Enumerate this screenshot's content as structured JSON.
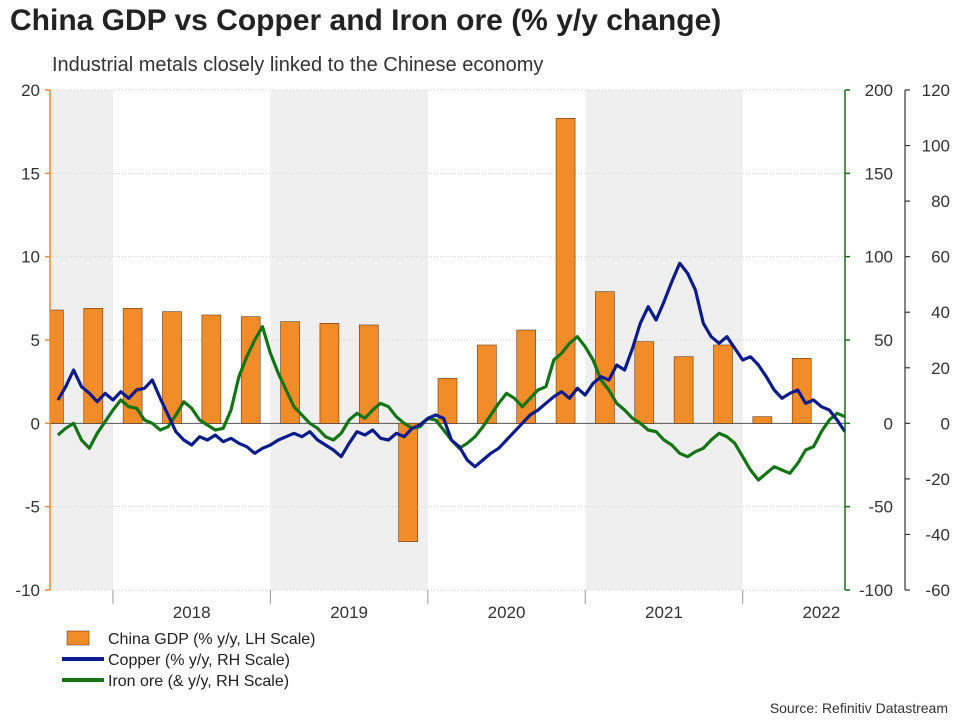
{
  "chart_data": {
    "type": "bar",
    "title": "China GDP vs Copper and Iron ore (% y/y change)",
    "subtitle": "Industrial metals closely linked to the Chinese economy",
    "source": "Source: Refinitiv Datastream",
    "left_axis": {
      "range": [
        -10,
        20
      ],
      "ticks": [
        "-10",
        "-5",
        "0",
        "5",
        "10",
        "15",
        "20"
      ],
      "color": "#F0892C"
    },
    "right_axis_1": {
      "range": [
        -100,
        200
      ],
      "ticks": [
        "-100",
        "-50",
        "0",
        "50",
        "100",
        "150",
        "200"
      ],
      "color": "#1B6E1B"
    },
    "right_axis_2": {
      "range": [
        -60,
        120
      ],
      "ticks": [
        "-60",
        "-40",
        "-20",
        "0",
        "20",
        "40",
        "60",
        "80",
        "100",
        "120"
      ],
      "color": "#333333"
    },
    "years": [
      "2018",
      "2019",
      "2020",
      "2021",
      "2022"
    ],
    "shaded_years": [
      "2017",
      "2019",
      "2021"
    ],
    "x_range": [
      2017.6,
      2022.65
    ],
    "series": [
      {
        "name": "China GDP (% y/y, LH Scale)",
        "type": "bar",
        "axis": "left",
        "color": "#F28C28",
        "points": [
          {
            "x": 2017.625,
            "y": 6.8
          },
          {
            "x": 2017.875,
            "y": 6.9
          },
          {
            "x": 2018.125,
            "y": 6.9
          },
          {
            "x": 2018.375,
            "y": 6.7
          },
          {
            "x": 2018.625,
            "y": 6.5
          },
          {
            "x": 2018.875,
            "y": 6.4
          },
          {
            "x": 2019.125,
            "y": 6.1
          },
          {
            "x": 2019.375,
            "y": 6.0
          },
          {
            "x": 2019.625,
            "y": 5.9
          },
          {
            "x": 2019.875,
            "y": -7.1
          },
          {
            "x": 2020.125,
            "y": 2.7
          },
          {
            "x": 2020.375,
            "y": 4.7
          },
          {
            "x": 2020.625,
            "y": 5.6
          },
          {
            "x": 2020.875,
            "y": 18.3
          },
          {
            "x": 2021.125,
            "y": 7.9
          },
          {
            "x": 2021.375,
            "y": 4.9
          },
          {
            "x": 2021.625,
            "y": 4.0
          },
          {
            "x": 2021.875,
            "y": 4.7
          },
          {
            "x": 2022.125,
            "y": 0.4
          },
          {
            "x": 2022.375,
            "y": 3.9
          }
        ]
      },
      {
        "name": "Copper (% y/y, RH Scale)",
        "type": "line",
        "axis": "right",
        "color": "#0A1C8C",
        "points": [
          [
            2017.65,
            14
          ],
          [
            2017.7,
            22
          ],
          [
            2017.75,
            32
          ],
          [
            2017.8,
            22
          ],
          [
            2017.85,
            18
          ],
          [
            2017.9,
            13
          ],
          [
            2017.95,
            18
          ],
          [
            2018.0,
            14
          ],
          [
            2018.05,
            19
          ],
          [
            2018.1,
            15
          ],
          [
            2018.15,
            20
          ],
          [
            2018.2,
            21
          ],
          [
            2018.25,
            26
          ],
          [
            2018.3,
            15
          ],
          [
            2018.35,
            5
          ],
          [
            2018.4,
            -5
          ],
          [
            2018.45,
            -10
          ],
          [
            2018.5,
            -13
          ],
          [
            2018.55,
            -8
          ],
          [
            2018.6,
            -10
          ],
          [
            2018.65,
            -7
          ],
          [
            2018.7,
            -11
          ],
          [
            2018.75,
            -9
          ],
          [
            2018.8,
            -12
          ],
          [
            2018.85,
            -14
          ],
          [
            2018.9,
            -18
          ],
          [
            2018.95,
            -15
          ],
          [
            2019.0,
            -13
          ],
          [
            2019.05,
            -10
          ],
          [
            2019.1,
            -8
          ],
          [
            2019.15,
            -6
          ],
          [
            2019.2,
            -8
          ],
          [
            2019.25,
            -5
          ],
          [
            2019.3,
            -10
          ],
          [
            2019.35,
            -13
          ],
          [
            2019.4,
            -16
          ],
          [
            2019.45,
            -20
          ],
          [
            2019.5,
            -12
          ],
          [
            2019.55,
            -5
          ],
          [
            2019.6,
            -7
          ],
          [
            2019.65,
            -4
          ],
          [
            2019.7,
            -9
          ],
          [
            2019.75,
            -10
          ],
          [
            2019.8,
            -6
          ],
          [
            2019.85,
            -8
          ],
          [
            2019.9,
            -3
          ],
          [
            2019.95,
            -1
          ],
          [
            2020.0,
            3
          ],
          [
            2020.05,
            5
          ],
          [
            2020.1,
            3
          ],
          [
            2020.15,
            -10
          ],
          [
            2020.2,
            -14
          ],
          [
            2020.25,
            -22
          ],
          [
            2020.3,
            -26
          ],
          [
            2020.35,
            -22
          ],
          [
            2020.4,
            -18
          ],
          [
            2020.45,
            -15
          ],
          [
            2020.5,
            -10
          ],
          [
            2020.55,
            -5
          ],
          [
            2020.6,
            0
          ],
          [
            2020.65,
            5
          ],
          [
            2020.7,
            8
          ],
          [
            2020.75,
            12
          ],
          [
            2020.8,
            16
          ],
          [
            2020.85,
            19
          ],
          [
            2020.9,
            15
          ],
          [
            2020.95,
            21
          ],
          [
            2021.0,
            17
          ],
          [
            2021.05,
            24
          ],
          [
            2021.1,
            28
          ],
          [
            2021.15,
            26
          ],
          [
            2021.2,
            35
          ],
          [
            2021.25,
            32
          ],
          [
            2021.3,
            45
          ],
          [
            2021.35,
            60
          ],
          [
            2021.4,
            70
          ],
          [
            2021.45,
            62
          ],
          [
            2021.5,
            73
          ],
          [
            2021.55,
            85
          ],
          [
            2021.6,
            96
          ],
          [
            2021.65,
            90
          ],
          [
            2021.7,
            80
          ],
          [
            2021.75,
            60
          ],
          [
            2021.8,
            52
          ],
          [
            2021.85,
            48
          ],
          [
            2021.9,
            52
          ],
          [
            2021.95,
            45
          ],
          [
            2022.0,
            38
          ],
          [
            2022.05,
            40
          ],
          [
            2022.1,
            35
          ],
          [
            2022.15,
            28
          ],
          [
            2022.2,
            20
          ],
          [
            2022.25,
            15
          ],
          [
            2022.3,
            18
          ],
          [
            2022.35,
            20
          ],
          [
            2022.4,
            12
          ],
          [
            2022.45,
            14
          ],
          [
            2022.5,
            10
          ],
          [
            2022.55,
            8
          ],
          [
            2022.6,
            2
          ],
          [
            2022.65,
            -5
          ]
        ]
      },
      {
        "name": "Iron ore (& y/y, RH Scale)",
        "type": "line",
        "axis": "right",
        "color": "#137413",
        "points": [
          [
            2017.65,
            -7
          ],
          [
            2017.7,
            -3
          ],
          [
            2017.75,
            0
          ],
          [
            2017.8,
            -10
          ],
          [
            2017.85,
            -15
          ],
          [
            2017.9,
            -6
          ],
          [
            2017.95,
            1
          ],
          [
            2018.0,
            8
          ],
          [
            2018.05,
            14
          ],
          [
            2018.1,
            10
          ],
          [
            2018.15,
            9
          ],
          [
            2018.2,
            2
          ],
          [
            2018.25,
            0
          ],
          [
            2018.3,
            -4
          ],
          [
            2018.35,
            -2
          ],
          [
            2018.4,
            5
          ],
          [
            2018.45,
            13
          ],
          [
            2018.5,
            9
          ],
          [
            2018.55,
            2
          ],
          [
            2018.6,
            -1
          ],
          [
            2018.65,
            -4
          ],
          [
            2018.7,
            -3
          ],
          [
            2018.75,
            8
          ],
          [
            2018.8,
            28
          ],
          [
            2018.85,
            40
          ],
          [
            2018.9,
            50
          ],
          [
            2018.95,
            58
          ],
          [
            2019.0,
            42
          ],
          [
            2019.05,
            30
          ],
          [
            2019.1,
            20
          ],
          [
            2019.15,
            10
          ],
          [
            2019.2,
            5
          ],
          [
            2019.25,
            0
          ],
          [
            2019.3,
            -3
          ],
          [
            2019.35,
            -8
          ],
          [
            2019.4,
            -10
          ],
          [
            2019.45,
            -6
          ],
          [
            2019.5,
            2
          ],
          [
            2019.55,
            6
          ],
          [
            2019.6,
            3
          ],
          [
            2019.65,
            8
          ],
          [
            2019.7,
            12
          ],
          [
            2019.75,
            10
          ],
          [
            2019.8,
            4
          ],
          [
            2019.85,
            0
          ],
          [
            2019.9,
            -3
          ],
          [
            2019.95,
            -2
          ],
          [
            2020.0,
            3
          ],
          [
            2020.05,
            2
          ],
          [
            2020.1,
            -4
          ],
          [
            2020.15,
            -10
          ],
          [
            2020.2,
            -15
          ],
          [
            2020.25,
            -12
          ],
          [
            2020.3,
            -8
          ],
          [
            2020.35,
            -2
          ],
          [
            2020.4,
            5
          ],
          [
            2020.45,
            12
          ],
          [
            2020.5,
            18
          ],
          [
            2020.55,
            15
          ],
          [
            2020.6,
            10
          ],
          [
            2020.65,
            15
          ],
          [
            2020.7,
            20
          ],
          [
            2020.75,
            22
          ],
          [
            2020.8,
            38
          ],
          [
            2020.85,
            42
          ],
          [
            2020.9,
            48
          ],
          [
            2020.95,
            52
          ],
          [
            2021.0,
            46
          ],
          [
            2021.05,
            38
          ],
          [
            2021.1,
            26
          ],
          [
            2021.15,
            20
          ],
          [
            2021.2,
            12
          ],
          [
            2021.25,
            8
          ],
          [
            2021.3,
            3
          ],
          [
            2021.35,
            0
          ],
          [
            2021.4,
            -4
          ],
          [
            2021.45,
            -5
          ],
          [
            2021.5,
            -10
          ],
          [
            2021.55,
            -13
          ],
          [
            2021.6,
            -18
          ],
          [
            2021.65,
            -20
          ],
          [
            2021.7,
            -17
          ],
          [
            2021.75,
            -15
          ],
          [
            2021.8,
            -10
          ],
          [
            2021.85,
            -6
          ],
          [
            2021.9,
            -8
          ],
          [
            2021.95,
            -12
          ],
          [
            2022.0,
            -20
          ],
          [
            2022.05,
            -28
          ],
          [
            2022.1,
            -34
          ],
          [
            2022.15,
            -30
          ],
          [
            2022.2,
            -26
          ],
          [
            2022.25,
            -28
          ],
          [
            2022.3,
            -30
          ],
          [
            2022.35,
            -24
          ],
          [
            2022.4,
            -16
          ],
          [
            2022.45,
            -14
          ],
          [
            2022.5,
            -5
          ],
          [
            2022.55,
            2
          ],
          [
            2022.6,
            6
          ],
          [
            2022.65,
            4
          ]
        ]
      }
    ],
    "legend": [
      {
        "label": "China GDP (% y/y, LH Scale)",
        "kind": "bar",
        "color": "#F28C28"
      },
      {
        "label": "Copper (% y/y, RH Scale)",
        "kind": "line",
        "color": "#0A1C8C"
      },
      {
        "label": "Iron ore (& y/y, RH Scale)",
        "kind": "line",
        "color": "#137413"
      }
    ]
  }
}
